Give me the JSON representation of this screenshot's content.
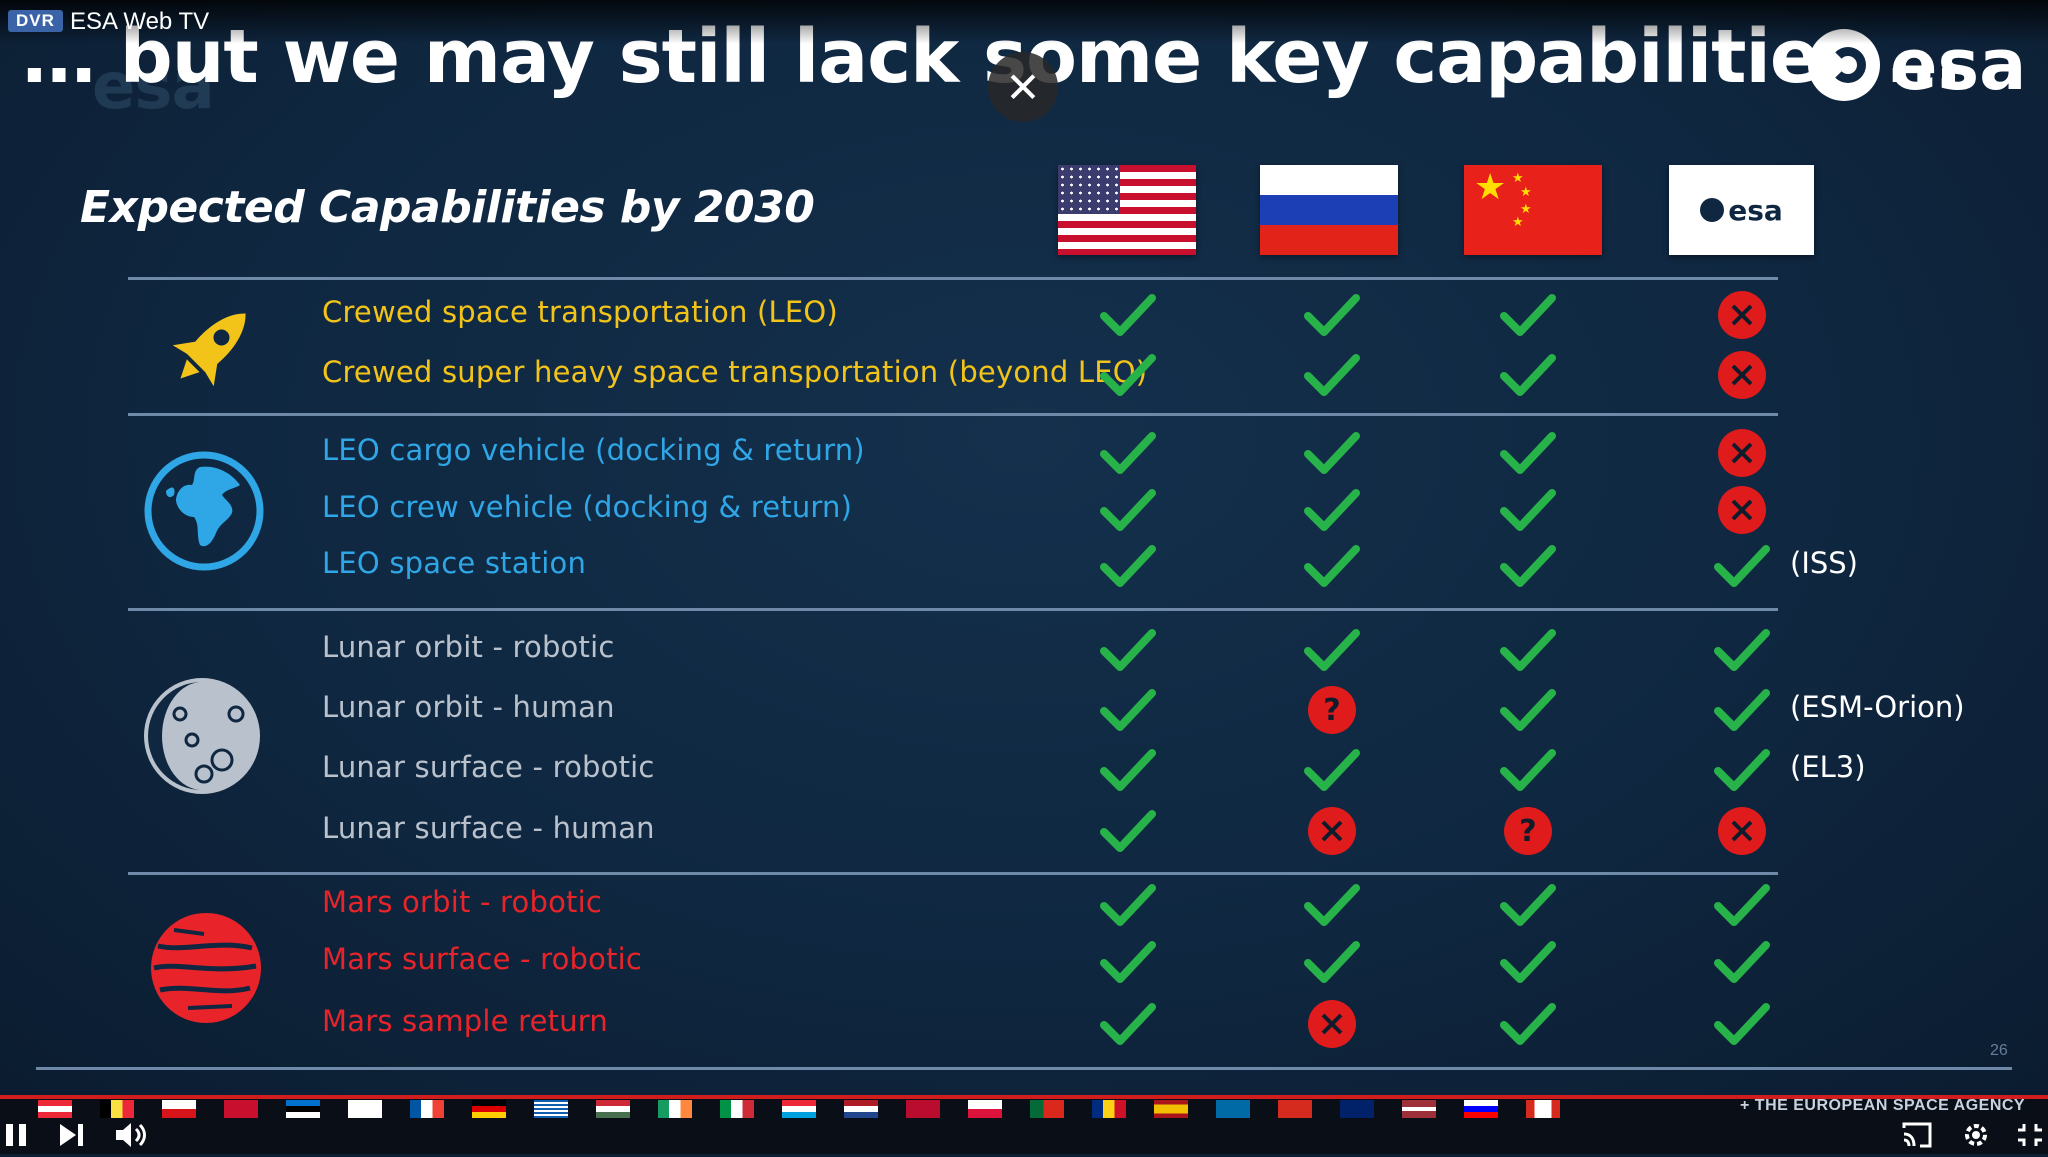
{
  "player": {
    "badge": "DVR",
    "channel": "ESA Web TV",
    "close_glyph": "✕"
  },
  "slide": {
    "headline": "… but we may still lack some key capabilities …",
    "logo_text": "esa",
    "subtitle": "Expected Capabilities by 2030",
    "columns": [
      "USA",
      "Russia",
      "China",
      "ESA"
    ],
    "flag_esa_text": "esa",
    "colors": {
      "transport": "#f2c318",
      "leo": "#2fa6e6",
      "lunar": "#b9c2cc",
      "mars": "#e8242a",
      "check": "#27b24a",
      "cross": "#e01b1b"
    },
    "groups": [
      {
        "icon": "rocket-icon",
        "rows": [
          {
            "label": "Crewed space transportation (LEO)",
            "marks": [
              "check",
              "check",
              "check",
              "cross"
            ],
            "note": ""
          },
          {
            "label": "Crewed super heavy space transportation (beyond LEO)",
            "marks": [
              "check",
              "check",
              "check",
              "cross"
            ],
            "note": ""
          }
        ]
      },
      {
        "icon": "globe-icon",
        "rows": [
          {
            "label": "LEO cargo vehicle (docking & return)",
            "marks": [
              "check",
              "check",
              "check",
              "cross"
            ],
            "note": ""
          },
          {
            "label": "LEO crew vehicle (docking & return)",
            "marks": [
              "check",
              "check",
              "check",
              "cross"
            ],
            "note": ""
          },
          {
            "label": "LEO space station",
            "marks": [
              "check",
              "check",
              "check",
              "check"
            ],
            "note": "(ISS)"
          }
        ]
      },
      {
        "icon": "moon-icon",
        "rows": [
          {
            "label": "Lunar orbit - robotic",
            "marks": [
              "check",
              "check",
              "check",
              "check"
            ],
            "note": ""
          },
          {
            "label": "Lunar orbit - human",
            "marks": [
              "check",
              "question",
              "check",
              "check"
            ],
            "note": "(ESM-Orion)"
          },
          {
            "label": "Lunar surface - robotic",
            "marks": [
              "check",
              "check",
              "check",
              "check"
            ],
            "note": "(EL3)"
          },
          {
            "label": "Lunar surface - human",
            "marks": [
              "check",
              "cross",
              "question",
              "cross"
            ],
            "note": ""
          }
        ]
      },
      {
        "icon": "mars-icon",
        "rows": [
          {
            "label": "Mars orbit - robotic",
            "marks": [
              "check",
              "check",
              "check",
              "check"
            ],
            "note": ""
          },
          {
            "label": "Mars surface - robotic",
            "marks": [
              "check",
              "check",
              "check",
              "check"
            ],
            "note": ""
          },
          {
            "label": "Mars sample return",
            "marks": [
              "check",
              "cross",
              "check",
              "check"
            ],
            "note": ""
          }
        ]
      }
    ],
    "slide_number": "26"
  },
  "footer": {
    "agency": "+ THE EUROPEAN SPACE AGENCY",
    "controls": {
      "pause": "pause-icon",
      "next": "next-icon",
      "volume": "volume-icon",
      "cast": "cast-icon",
      "settings": "settings-icon",
      "fullscreen": "fullscreen-icon"
    },
    "member_flags": [
      "austria",
      "belgium",
      "czechia",
      "denmark",
      "estonia",
      "finland",
      "france",
      "germany",
      "greece",
      "hungary",
      "ireland",
      "italy",
      "luxembourg",
      "netherlands",
      "norway",
      "poland",
      "portugal",
      "romania",
      "spain",
      "sweden",
      "switzerland",
      "uk",
      "latvia",
      "slovenia",
      "canada"
    ]
  }
}
